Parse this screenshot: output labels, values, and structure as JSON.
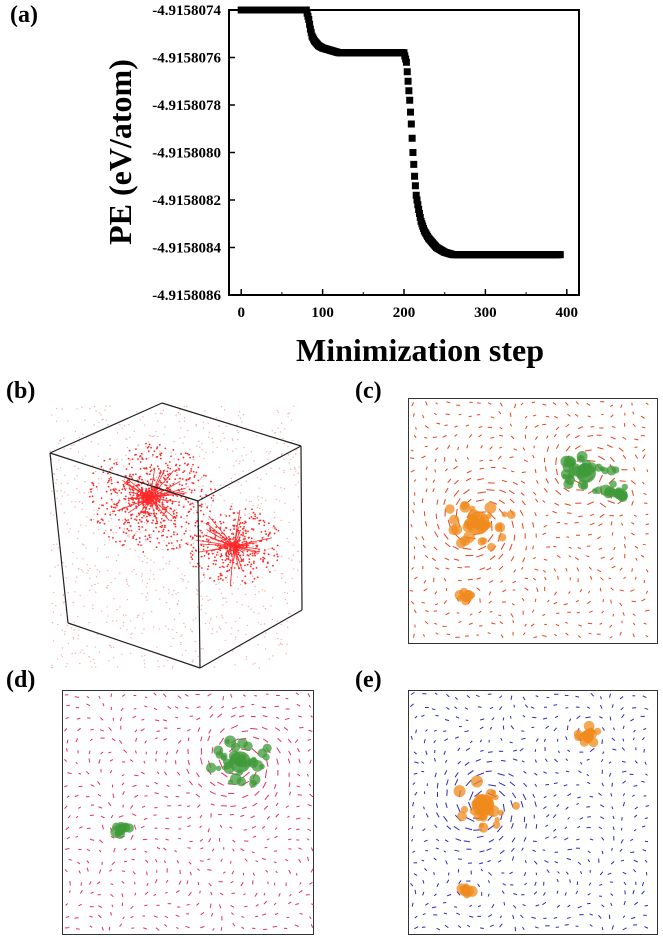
{
  "labels": {
    "a": "(a)",
    "b": "(b)",
    "c": "(c)",
    "d": "(d)",
    "e": "(e)"
  },
  "chart_data": {
    "type": "scatter",
    "title": "",
    "xlabel": "Minimization step",
    "ylabel": "PE (eV/atom)",
    "xlim": [
      -15,
      415
    ],
    "ylim": [
      -4.9158086,
      -4.9158074
    ],
    "xticks": [
      0,
      100,
      200,
      300,
      400
    ],
    "xtick_labels": [
      "0",
      "100",
      "200",
      "300",
      "400"
    ],
    "yticks": [
      -4.9158074,
      -4.9158076,
      -4.9158078,
      -4.915808,
      -4.9158082,
      -4.9158084,
      -4.9158086
    ],
    "ytick_labels": [
      "-4.9158074",
      "-4.9158076",
      "-4.9158078",
      "-4.9158080",
      "-4.9158082",
      "-4.9158084",
      "-4.9158086"
    ],
    "grid": false,
    "marker": "square",
    "color": "#000000",
    "series": [
      {
        "x": [
          0,
          20,
          40,
          60,
          80,
          83,
          85,
          87,
          90,
          95,
          100,
          110,
          120,
          140,
          160,
          180,
          200,
          203,
          205,
          207,
          209,
          211,
          213,
          215,
          218,
          221,
          225,
          230,
          235,
          240,
          245,
          250,
          260,
          270,
          290,
          320,
          350,
          380,
          392
        ],
        "y": [
          -4.9158074,
          -4.9158074,
          -4.9158074,
          -4.9158074,
          -4.9158074,
          -4.91580744,
          -4.91580748,
          -4.91580751,
          -4.91580753,
          -4.91580755,
          -4.91580756,
          -4.91580757,
          -4.91580758,
          -4.91580758,
          -4.91580758,
          -4.91580758,
          -4.91580758,
          -4.91580762,
          -4.9158077,
          -4.91580778,
          -4.91580788,
          -4.915808,
          -4.9158081,
          -4.91580818,
          -4.91580824,
          -4.91580829,
          -4.91580833,
          -4.91580836,
          -4.91580838,
          -4.9158084,
          -4.91580841,
          -4.91580842,
          -4.91580843,
          -4.91580843,
          -4.91580843,
          -4.91580843,
          -4.91580843,
          -4.91580843,
          -4.91580843
        ]
      }
    ]
  },
  "colors": {
    "cube_field": "#ff2a2a",
    "orange_cluster": "#f08a1c",
    "green_cluster": "#3f9a3a",
    "panel_c_field": "#e0471e",
    "panel_d_field": "#e0306a",
    "panel_e_field": "#2a2ab8"
  }
}
